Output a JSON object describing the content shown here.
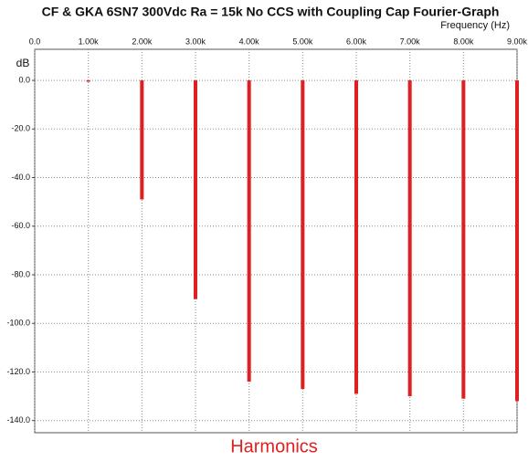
{
  "chart_data": {
    "type": "stem",
    "title": "CF & GKA 6SN7 300Vdc Ra = 15k No CCS with Coupling Cap Fourier-Graph",
    "x_label": "Frequency  (Hz)",
    "y_label": "dB",
    "annotation": "Harmonics",
    "x": [
      1000,
      2000,
      3000,
      4000,
      5000,
      6000,
      7000,
      8000,
      9000
    ],
    "values": [
      0,
      -49,
      -90,
      -124,
      -127,
      -129,
      -130,
      -131,
      -132
    ],
    "color": "#e02020",
    "xlim": [
      0,
      9000
    ],
    "xticks": [
      {
        "value": 0,
        "label": "0.0"
      },
      {
        "value": 1000,
        "label": "1.00k"
      },
      {
        "value": 2000,
        "label": "2.00k"
      },
      {
        "value": 3000,
        "label": "3.00k"
      },
      {
        "value": 4000,
        "label": "4.00k"
      },
      {
        "value": 5000,
        "label": "5.00k"
      },
      {
        "value": 6000,
        "label": "6.00k"
      },
      {
        "value": 7000,
        "label": "7.00k"
      },
      {
        "value": 8000,
        "label": "8.00k"
      },
      {
        "value": 9000,
        "label": "9.00k"
      }
    ],
    "ylim": [
      -145,
      12.8
    ],
    "yticks": [
      {
        "value": 0,
        "label": "0.0"
      },
      {
        "value": -20,
        "label": "-20.0"
      },
      {
        "value": -40,
        "label": "-40.0"
      },
      {
        "value": -60,
        "label": "-60.0"
      },
      {
        "value": -80,
        "label": "-80.0"
      },
      {
        "value": -100,
        "label": "-100.0"
      },
      {
        "value": -120,
        "label": "-120.0"
      },
      {
        "value": -140,
        "label": "-140.0"
      }
    ],
    "grid": true
  }
}
